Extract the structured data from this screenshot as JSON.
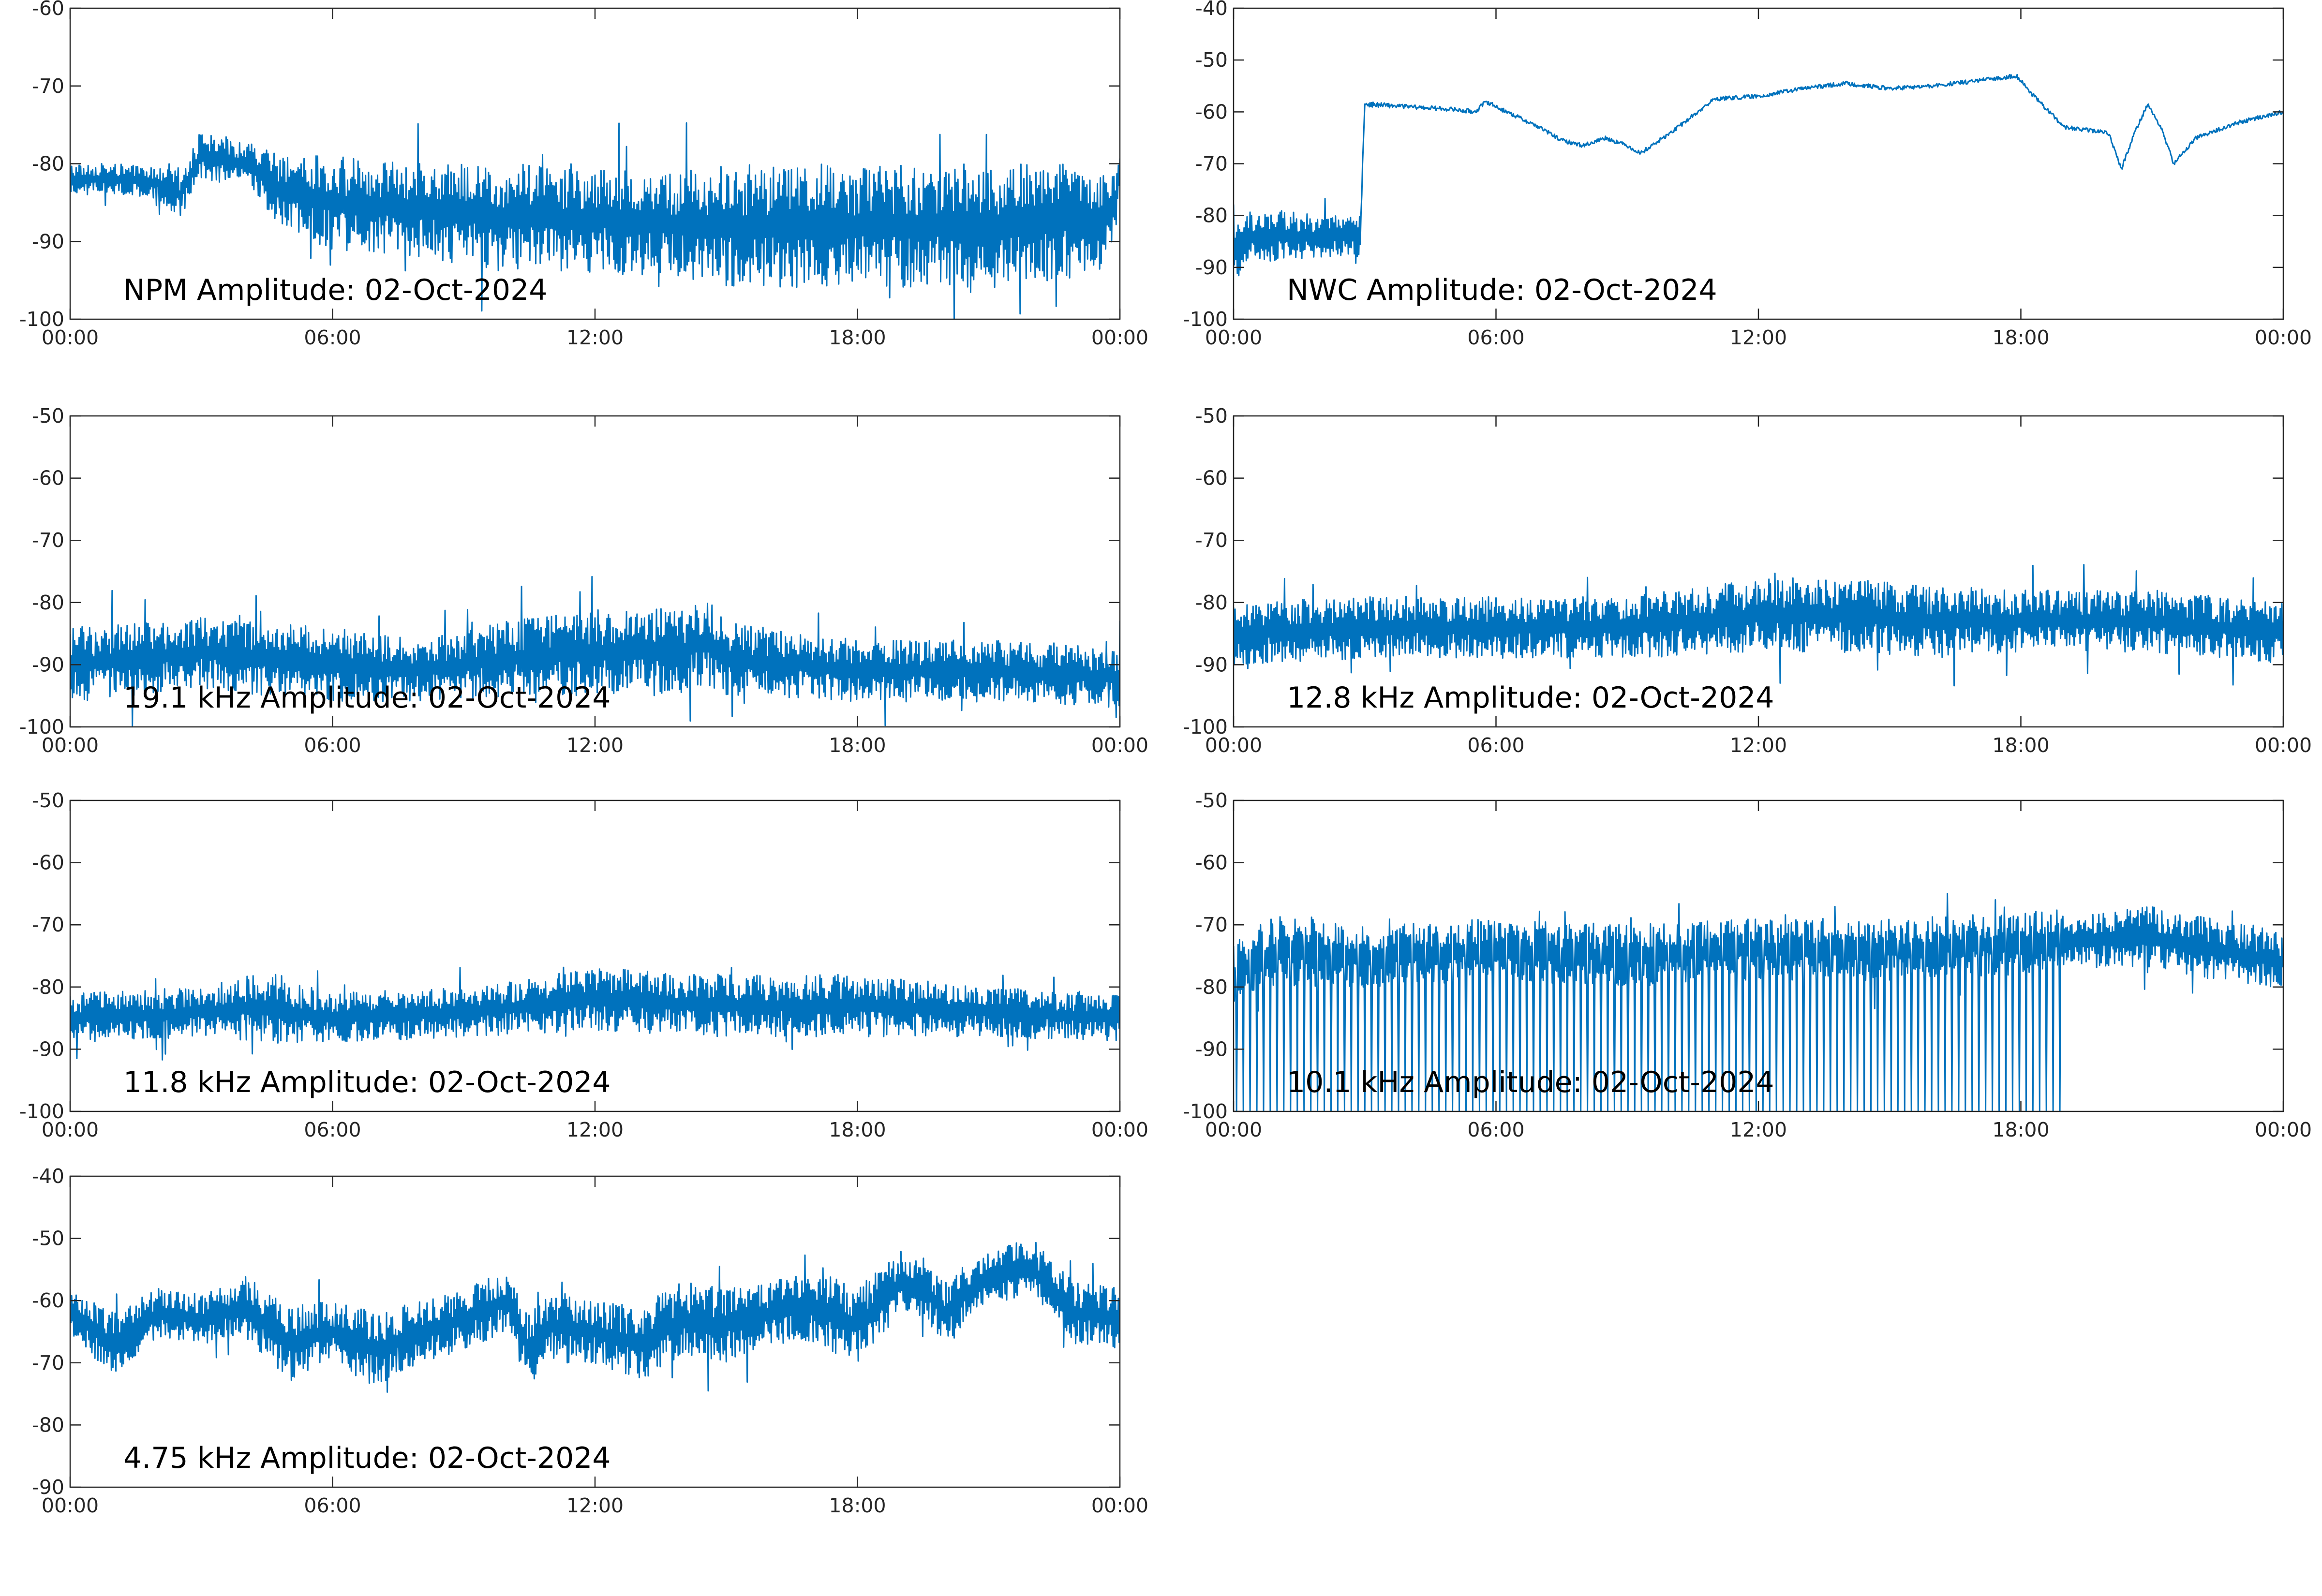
{
  "figure": {
    "background": "#ffffff",
    "line_color": "#0072bd",
    "axis_color": "#262626"
  },
  "chart_data": [
    {
      "type": "line",
      "title": "NPM Amplitude: 02-Oct-2024",
      "x_ticks": [
        "00:00",
        "06:00",
        "12:00",
        "18:00",
        "00:00"
      ],
      "xlim": [
        "00:00",
        "24:00"
      ],
      "y_ticks": [
        "-60",
        "-70",
        "-80",
        "-90",
        "-100"
      ],
      "ylim": [
        -100,
        -60
      ],
      "grid": false,
      "series": [
        {
          "x_hours": [
            0,
            1,
            2,
            2.5,
            2.8,
            3,
            4,
            4.5,
            5,
            6,
            8,
            10,
            12,
            14,
            15,
            16,
            18,
            20,
            22,
            22.7,
            23,
            23.5,
            23.9,
            24
          ],
          "y_center": [
            -82,
            -82,
            -82.5,
            -84,
            -81,
            -79,
            -80,
            -82,
            -84,
            -85,
            -86,
            -87,
            -87,
            -88,
            -88,
            -88,
            -88,
            -88,
            -88,
            -87,
            -88,
            -88,
            -85,
            -80
          ],
          "y_spread": [
            2,
            2,
            2,
            3,
            3,
            3,
            3,
            4,
            5,
            6,
            6,
            7,
            7,
            7,
            8,
            8,
            8,
            8,
            8,
            8,
            7,
            6,
            5,
            3
          ]
        }
      ]
    },
    {
      "type": "line",
      "title": "NWC Amplitude: 02-Oct-2024",
      "x_ticks": [
        "00:00",
        "06:00",
        "12:00",
        "18:00",
        "00:00"
      ],
      "xlim": [
        "00:00",
        "24:00"
      ],
      "y_ticks": [
        "-40",
        "-50",
        "-60",
        "-70",
        "-80",
        "-90",
        "-100"
      ],
      "ylim": [
        -100,
        -40
      ],
      "grid": false,
      "series": [
        {
          "x_hours": [
            0,
            0.3,
            1,
            2,
            2.9,
            2.95,
            3,
            4,
            5,
            5.5,
            5.8,
            6,
            6.5,
            7,
            7.5,
            8,
            8.5,
            9,
            9.3,
            10,
            11,
            12,
            13,
            14,
            15,
            16,
            17,
            17.5,
            17.9,
            18.3,
            19,
            19.5,
            20,
            20.3,
            20.6,
            20.9,
            21.2,
            21.5,
            22,
            23,
            24
          ],
          "y_center": [
            -88,
            -84,
            -84,
            -84,
            -84,
            -70,
            -58.5,
            -59,
            -59.5,
            -60,
            -58,
            -59,
            -61,
            -63,
            -65.5,
            -66.5,
            -65,
            -66.5,
            -68,
            -64,
            -57.5,
            -57,
            -55.5,
            -54.5,
            -55.5,
            -55,
            -54,
            -53.5,
            -53,
            -57,
            -63,
            -63.5,
            -64,
            -71,
            -64,
            -58.5,
            -63,
            -70,
            -65,
            -62,
            -60
          ],
          "y_spread": [
            6,
            5,
            5,
            4,
            4,
            0.5,
            0.5,
            0.4,
            0.4,
            0.5,
            0.5,
            0.4,
            0.4,
            0.4,
            0.4,
            0.4,
            0.4,
            0.4,
            0.4,
            0.4,
            0.4,
            0.4,
            0.4,
            0.4,
            0.4,
            0.4,
            0.4,
            0.4,
            0.4,
            0.4,
            0.4,
            0.4,
            0.4,
            0.4,
            0.4,
            0.4,
            0.4,
            0.4,
            0.4,
            0.4,
            0.4
          ]
        }
      ]
    },
    {
      "type": "line",
      "title": "19.1 kHz Amplitude: 02-Oct-2024",
      "x_ticks": [
        "00:00",
        "06:00",
        "12:00",
        "18:00",
        "00:00"
      ],
      "xlim": [
        "00:00",
        "24:00"
      ],
      "y_ticks": [
        "-50",
        "-60",
        "-70",
        "-80",
        "-90",
        "-100"
      ],
      "ylim": [
        -100,
        -50
      ],
      "grid": false,
      "series": [
        {
          "x_hours": [
            0,
            3,
            6,
            8,
            10,
            12,
            14,
            14.5,
            15,
            18,
            21,
            24
          ],
          "y_center": [
            -90,
            -88,
            -90,
            -91,
            -89,
            -88,
            -88,
            -86,
            -89,
            -91,
            -91,
            -92
          ],
          "y_spread": [
            6,
            6,
            6,
            5,
            6,
            7,
            7,
            7,
            6,
            5,
            5,
            5
          ]
        }
      ]
    },
    {
      "type": "line",
      "title": "12.8 kHz Amplitude: 02-Oct-2024",
      "x_ticks": [
        "00:00",
        "06:00",
        "12:00",
        "18:00",
        "00:00"
      ],
      "xlim": [
        "00:00",
        "24:00"
      ],
      "y_ticks": [
        "-50",
        "-60",
        "-70",
        "-80",
        "-90",
        "-100"
      ],
      "ylim": [
        -100,
        -50
      ],
      "grid": false,
      "series": [
        {
          "x_hours": [
            0,
            3,
            6,
            9,
            12,
            14,
            16,
            18,
            21,
            24
          ],
          "y_center": [
            -85,
            -84,
            -84,
            -84,
            -82,
            -82,
            -83,
            -83,
            -83,
            -85
          ],
          "y_spread": [
            5,
            5,
            5,
            5,
            6,
            6,
            6,
            5,
            5,
            5
          ]
        }
      ]
    },
    {
      "type": "line",
      "title": "11.8 kHz Amplitude: 02-Oct-2024",
      "x_ticks": [
        "00:00",
        "06:00",
        "12:00",
        "18:00",
        "00:00"
      ],
      "xlim": [
        "00:00",
        "24:00"
      ],
      "y_ticks": [
        "-50",
        "-60",
        "-70",
        "-80",
        "-90",
        "-100"
      ],
      "ylim": [
        -100,
        -50
      ],
      "grid": false,
      "series": [
        {
          "x_hours": [
            0,
            3,
            4.7,
            5,
            6,
            9,
            12,
            15,
            18,
            21,
            24
          ],
          "y_center": [
            -85,
            -84,
            -83,
            -84,
            -85,
            -84,
            -82,
            -83,
            -83,
            -84,
            -85
          ],
          "y_spread": [
            4,
            4,
            6,
            5,
            4,
            4,
            5,
            5,
            5,
            4,
            4
          ]
        }
      ]
    },
    {
      "type": "line",
      "title": "10.1 kHz Amplitude: 02-Oct-2024",
      "x_ticks": [
        "00:00",
        "06:00",
        "12:00",
        "18:00",
        "00:00"
      ],
      "xlim": [
        "00:00",
        "24:00"
      ],
      "y_ticks": [
        "-50",
        "-60",
        "-70",
        "-80",
        "-90",
        "-100"
      ],
      "ylim": [
        -100,
        -50
      ],
      "grid": false,
      "series": [
        {
          "x_hours": [
            0,
            1,
            3,
            6,
            9,
            12,
            15,
            18,
            18.9,
            19,
            21,
            24
          ],
          "y_center": [
            -78,
            -74,
            -75,
            -74,
            -75,
            -74,
            -74,
            -73,
            -72,
            -73,
            -72,
            -76
          ],
          "y_spread": [
            5,
            6,
            5,
            5,
            5,
            5,
            5,
            5,
            5,
            4,
            5,
            5
          ],
          "dropouts_until_hours": 18.9,
          "dropout_floor": -100
        }
      ]
    },
    {
      "type": "line",
      "title": "4.75 kHz Amplitude: 02-Oct-2024",
      "x_ticks": [
        "00:00",
        "06:00",
        "12:00",
        "18:00",
        "00:00"
      ],
      "xlim": [
        "00:00",
        "24:00"
      ],
      "y_ticks": [
        "-40",
        "-50",
        "-60",
        "-70",
        "-80",
        "-90"
      ],
      "ylim": [
        -90,
        -40
      ],
      "grid": false,
      "series": [
        {
          "x_hours": [
            0,
            1,
            2,
            3,
            4,
            5,
            6,
            7,
            8,
            9,
            10,
            10.5,
            11,
            12,
            13,
            14,
            15,
            16,
            17,
            18,
            19,
            19.5,
            20,
            21,
            22,
            23,
            24
          ],
          "y_center": [
            -62,
            -67,
            -62,
            -63,
            -61,
            -67,
            -65,
            -68,
            -65,
            -63,
            -60,
            -68,
            -64,
            -65,
            -67,
            -63,
            -64,
            -62,
            -61,
            -64,
            -57,
            -58,
            -62,
            -56,
            -55,
            -62,
            -63
          ],
          "y_spread": [
            4,
            5,
            4,
            4,
            5,
            6,
            5,
            6,
            5,
            5,
            5,
            6,
            6,
            5,
            6,
            6,
            6,
            5,
            6,
            6,
            5,
            5,
            5,
            4,
            5,
            5,
            5
          ]
        }
      ]
    }
  ]
}
